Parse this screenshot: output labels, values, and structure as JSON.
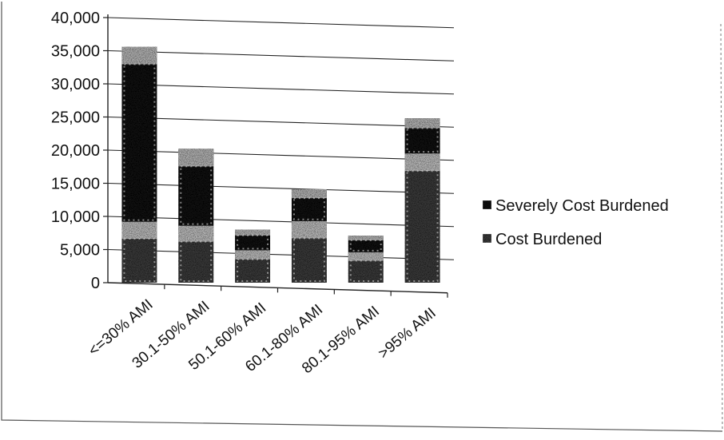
{
  "chart_data": {
    "type": "bar",
    "stacked": true,
    "categories": [
      "<=30% AMI",
      "30.1-50% AMI",
      "50.1-60% AMI",
      "60.1-80% AMI",
      "80.1-95% AMI",
      ">95% AMI"
    ],
    "series": [
      {
        "name": "Cost Burdened",
        "values": [
          9200,
          8600,
          4900,
          9300,
          4600,
          19500
        ]
      },
      {
        "name": "Severely Cost Burdened",
        "values": [
          26400,
          11600,
          3100,
          4800,
          2500,
          5300
        ]
      }
    ],
    "colors": {
      "Cost Burdened": "#3a3a3a",
      "Severely Cost Burdened": "#141414",
      "speckle": "#d6d6d6"
    },
    "yticks": [
      "0",
      "5,000",
      "10,000",
      "15,000",
      "20,000",
      "25,000",
      "30,000",
      "35,000",
      "40,000"
    ],
    "ylim": [
      0,
      40000
    ],
    "xlabel": "",
    "ylabel": "",
    "grid": true,
    "legend_position": "right"
  }
}
